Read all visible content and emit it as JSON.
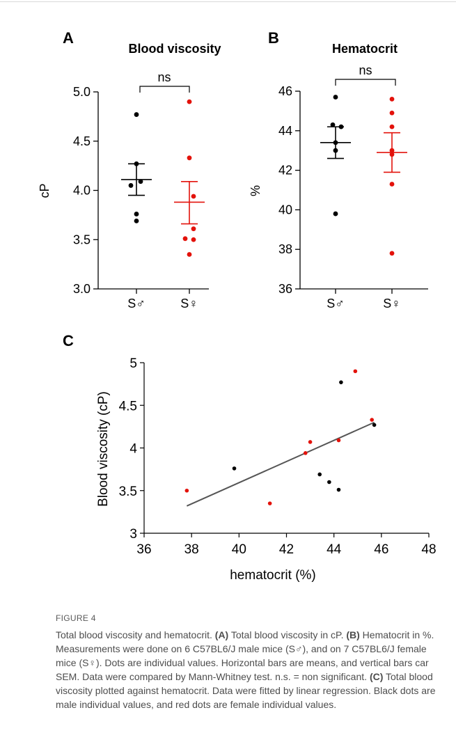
{
  "chart_data": [
    {
      "panel": "A",
      "type": "scatter",
      "title": "Blood viscosity",
      "ylabel": "cP",
      "ylim": [
        3.0,
        5.0
      ],
      "yticks": [
        "3.0",
        "3.5",
        "4.0",
        "4.5",
        "5.0"
      ],
      "categories": [
        "S♂",
        "S♀"
      ],
      "significance": "ns",
      "series": [
        {
          "color": "#000000",
          "values": [
            4.77,
            4.27,
            4.09,
            4.05,
            3.76,
            3.69
          ],
          "mean": 4.11,
          "sem_upper": 4.27,
          "sem_lower": 3.95
        },
        {
          "color": "#e3120b",
          "values": [
            4.9,
            4.33,
            3.94,
            3.61,
            3.51,
            3.5,
            3.35
          ],
          "mean": 3.88,
          "sem_upper": 4.09,
          "sem_lower": 3.66
        }
      ]
    },
    {
      "panel": "B",
      "type": "scatter",
      "title": "Hematocrit",
      "ylabel": "%",
      "ylim": [
        36,
        46
      ],
      "yticks": [
        "36",
        "38",
        "40",
        "42",
        "44",
        "46"
      ],
      "categories": [
        "S♂",
        "S♀"
      ],
      "significance": "ns",
      "series": [
        {
          "color": "#000000",
          "values": [
            45.7,
            44.3,
            44.2,
            43.4,
            43.0,
            39.8
          ],
          "mean": 43.4,
          "sem_upper": 44.2,
          "sem_lower": 42.6
        },
        {
          "color": "#e3120b",
          "values": [
            45.6,
            44.9,
            44.2,
            43.0,
            42.8,
            41.3,
            37.8
          ],
          "mean": 42.9,
          "sem_upper": 43.9,
          "sem_lower": 41.9
        }
      ]
    },
    {
      "panel": "C",
      "type": "scatter",
      "xlabel": "hematocrit (%)",
      "ylabel": "Blood viscosity (cP)",
      "xlim": [
        36,
        48
      ],
      "ylim": [
        3,
        5
      ],
      "xticks": [
        "36",
        "38",
        "40",
        "42",
        "44",
        "46",
        "48"
      ],
      "yticks": [
        "3",
        "3.5",
        "4",
        "4.5",
        "5"
      ],
      "series": [
        {
          "color": "#000000",
          "points": [
            [
              39.8,
              3.76
            ],
            [
              43.4,
              3.69
            ],
            [
              43.8,
              3.6
            ],
            [
              44.2,
              3.51
            ],
            [
              44.3,
              4.77
            ],
            [
              45.7,
              4.27
            ]
          ]
        },
        {
          "color": "#e3120b",
          "points": [
            [
              37.8,
              3.5
            ],
            [
              41.3,
              3.35
            ],
            [
              42.8,
              3.94
            ],
            [
              43.0,
              4.07
            ],
            [
              44.2,
              4.09
            ],
            [
              44.9,
              4.9
            ],
            [
              45.6,
              4.33
            ]
          ]
        }
      ],
      "regression": {
        "color": "#555555",
        "x": [
          37.8,
          45.7
        ],
        "y": [
          3.32,
          4.3
        ]
      }
    }
  ],
  "caption": {
    "label": "FIGURE 4",
    "segments": [
      {
        "t": "Total blood viscosity and hematocrit. ",
        "b": false
      },
      {
        "t": "(A)",
        "b": true
      },
      {
        "t": " Total blood viscosity in cP. ",
        "b": false
      },
      {
        "t": "(B)",
        "b": true
      },
      {
        "t": " Hematocrit in %. Measurements were done on 6 C57BL6/J male mice (S♂), and on 7 C57BL6/J female mice (S♀). Dots are individual values. Horizontal bars are means, and vertical bars car SEM. Data were compared by Mann-Whitney test. n.s. = non significant. ",
        "b": false
      },
      {
        "t": "(C)",
        "b": true
      },
      {
        "t": " Total blood viscosity plotted against hematocrit. Data were fitted by linear regression. Black dots are male individual values, and red dots are female individual values.",
        "b": false
      }
    ]
  }
}
